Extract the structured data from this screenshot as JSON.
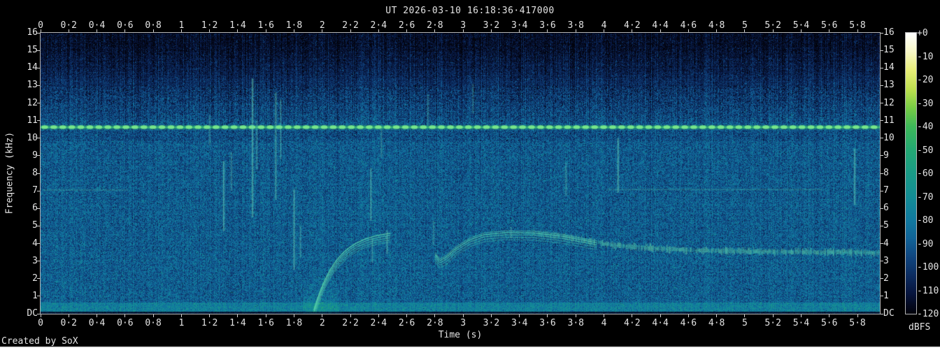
{
  "header": {
    "title": "UT 2026-03-10 16:18:36·417000"
  },
  "axes": {
    "xlabel": "Time (s)",
    "ylabel": "Frequency (kHz)",
    "colorbar_label": "dBFS"
  },
  "footer": {
    "credit": "Created by SoX"
  },
  "colors": {
    "background": "#000000",
    "frame": "#b4b4b4",
    "text": "#e4e4e4",
    "carrier_green": "#55c653",
    "noise_navy": "#10356e",
    "noise_teal": "#117aa0"
  },
  "chart_data": {
    "type": "heatmap",
    "title": "UT 2026-03-10 16:18:36·417000",
    "xlabel": "Time (s)",
    "ylabel": "Frequency (kHz)",
    "colorbar_label": "dBFS",
    "x_range_s": [
      0,
      5.96
    ],
    "x_tick_step_s": 0.2,
    "x_tick_labels": [
      "0",
      "0·2",
      "0·4",
      "0·6",
      "0·8",
      "1",
      "1·2",
      "1·4",
      "1·6",
      "1·8",
      "2",
      "2·2",
      "2·4",
      "2·6",
      "2·8",
      "3",
      "3·2",
      "3·4",
      "3·6",
      "3·8",
      "4",
      "4·2",
      "4·4",
      "4·6",
      "4·8",
      "5",
      "5·2",
      "5·4",
      "5·6",
      "5·8"
    ],
    "y_range_khz": [
      0,
      16
    ],
    "y_tick_labels": [
      "16",
      "15",
      "14",
      "13",
      "12",
      "11",
      "10",
      "9",
      "8",
      "7",
      "6",
      "5",
      "4",
      "3",
      "2",
      "1",
      "DC"
    ],
    "z_range_dbfs": [
      0,
      -120
    ],
    "level_tick_labels": [
      "+0",
      "-10",
      "-20",
      "-30",
      "-40",
      "-50",
      "-60",
      "-70",
      "-80",
      "-90",
      "-100",
      "-110",
      "-120"
    ],
    "grid": false,
    "legend": "colorbar-right",
    "palette_stops": [
      [
        0,
        255,
        255,
        255
      ],
      [
        -8,
        248,
        248,
        200
      ],
      [
        -16,
        232,
        238,
        120
      ],
      [
        -24,
        190,
        224,
        80
      ],
      [
        -32,
        120,
        205,
        70
      ],
      [
        -40,
        62,
        185,
        90
      ],
      [
        -50,
        36,
        168,
        116
      ],
      [
        -60,
        26,
        155,
        135
      ],
      [
        -70,
        20,
        142,
        150
      ],
      [
        -80,
        17,
        122,
        160
      ],
      [
        -88,
        18,
        100,
        152
      ],
      [
        -96,
        16,
        70,
        128
      ],
      [
        -104,
        12,
        44,
        96
      ],
      [
        -112,
        7,
        20,
        60
      ],
      [
        -120,
        2,
        3,
        12
      ]
    ],
    "noise_floor_dbfs": {
      "f16": -115,
      "f13": -104,
      "f11": -93,
      "mid": -91,
      "edge": -99
    },
    "features": {
      "carrier_tone": {
        "freq_khz": 10.63,
        "peak_dbfs": -38,
        "pattern": "beaded",
        "bead_period_s": 0.064
      },
      "low_freq_band": {
        "freq_khz_range": [
          0.15,
          0.65
        ],
        "level_dbfs": -77
      },
      "onset_burst": {
        "t_range_s": [
          1.86,
          2.12
        ],
        "f_max_khz": 1.9
      },
      "whistle_rise": {
        "t_start_s": 1.94,
        "t_end_s": 2.49,
        "f_start_khz": 0.2,
        "f_plateau_khz": 4.55,
        "tau_s": 0.165,
        "harmonic_count": 5,
        "harmonic_spacing_khz": 0.125
      },
      "whistle_main": {
        "points": [
          [
            2.8,
            3.38
          ],
          [
            2.835,
            3.02
          ],
          [
            2.88,
            3.22
          ],
          [
            2.95,
            3.72
          ],
          [
            3.05,
            4.22
          ],
          [
            3.15,
            4.5
          ],
          [
            3.3,
            4.62
          ],
          [
            3.5,
            4.6
          ],
          [
            3.7,
            4.42
          ],
          [
            3.9,
            4.12
          ],
          [
            4.05,
            3.92
          ],
          [
            4.3,
            3.76
          ],
          [
            4.6,
            3.62
          ],
          [
            5.0,
            3.56
          ],
          [
            5.4,
            3.52
          ],
          [
            5.7,
            3.52
          ],
          [
            5.96,
            3.45
          ]
        ],
        "harmonic_count": 5,
        "striated_after_s": 3.5
      },
      "clicks": [
        [
          1.2,
          11.3,
          9.6,
          0.28
        ],
        [
          1.3,
          8.7,
          4.7,
          0.5
        ],
        [
          1.355,
          9.2,
          7.0,
          0.3
        ],
        [
          1.505,
          13.4,
          5.5,
          0.55
        ],
        [
          1.535,
          11.0,
          8.2,
          0.33
        ],
        [
          1.67,
          12.6,
          6.5,
          0.42
        ],
        [
          1.705,
          12.2,
          8.8,
          0.33
        ],
        [
          1.8,
          7.1,
          2.5,
          0.48
        ],
        [
          1.845,
          5.0,
          3.2,
          0.3
        ],
        [
          2.345,
          8.3,
          5.3,
          0.45
        ],
        [
          2.355,
          4.3,
          2.9,
          0.33
        ],
        [
          2.42,
          10.6,
          8.9,
          0.28
        ],
        [
          2.46,
          4.75,
          3.4,
          0.42
        ],
        [
          2.75,
          12.5,
          10.7,
          0.28
        ],
        [
          2.79,
          5.3,
          3.9,
          0.28
        ],
        [
          3.07,
          13.1,
          11.4,
          0.26
        ],
        [
          3.34,
          4.95,
          4.3,
          0.35
        ],
        [
          3.73,
          8.6,
          6.7,
          0.3
        ],
        [
          4.1,
          10.0,
          6.9,
          0.5
        ],
        [
          5.78,
          9.4,
          6.2,
          0.5
        ]
      ],
      "tonal_lines": [
        [
          4.02,
          5.55,
          7.08
        ],
        [
          0.02,
          0.62,
          7.05
        ]
      ]
    }
  }
}
